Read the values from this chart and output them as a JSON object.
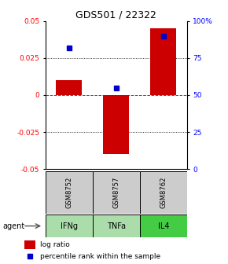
{
  "title": "GDS501 / 22322",
  "bar_values": [
    0.01,
    -0.04,
    0.045
  ],
  "percentile_ranks": [
    82,
    55,
    90
  ],
  "categories": [
    "GSM8752",
    "GSM8757",
    "GSM8762"
  ],
  "agents": [
    "IFNg",
    "TNFa",
    "IL4"
  ],
  "bar_color": "#cc0000",
  "percentile_color": "#0000cc",
  "ylim_left": [
    -0.05,
    0.05
  ],
  "ylim_right": [
    0,
    100
  ],
  "yticks_left": [
    -0.05,
    -0.025,
    0,
    0.025,
    0.05
  ],
  "ytick_labels_left": [
    "-0.05",
    "-0.025",
    "0",
    "0.025",
    "0.05"
  ],
  "yticks_right": [
    0,
    25,
    50,
    75,
    100
  ],
  "ytick_labels_right": [
    "0",
    "25",
    "50",
    "75",
    "100%"
  ],
  "dotted_lines": [
    -0.025,
    0.025
  ],
  "zero_line_color": "#ff0000",
  "agent_colors": [
    "#aaddaa",
    "#aaddaa",
    "#44cc44"
  ],
  "sample_bg": "#cccccc",
  "legend_log_ratio": "log ratio",
  "legend_percentile": "percentile rank within the sample",
  "agent_label": "agent",
  "bar_width": 0.55
}
